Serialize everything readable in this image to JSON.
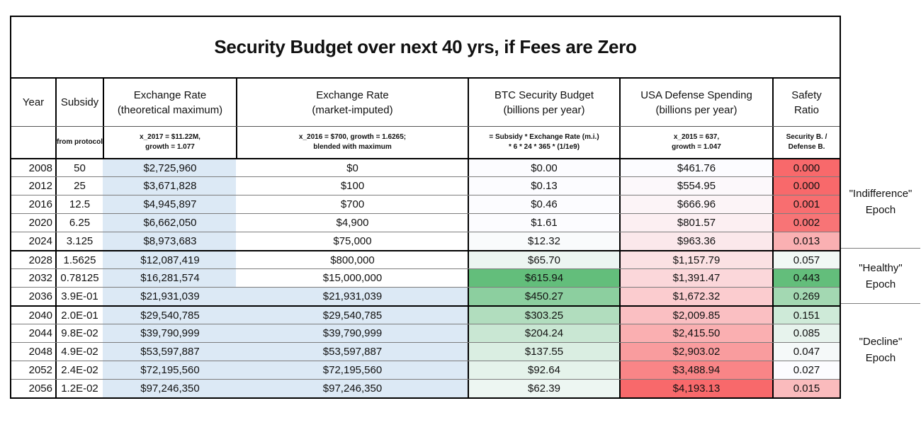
{
  "title": "Security Budget over next 40 yrs, if Fees are Zero",
  "header": {
    "year": {
      "label": "Year",
      "formula1": "",
      "formula2": ""
    },
    "subsidy": {
      "label": "Subsidy",
      "formula1": "from protocol",
      "formula2": ""
    },
    "er_max": {
      "label": "Exchange Rate",
      "sublabel": "(theoretical maximum)",
      "formula1": "x_2017 = $11.22M,",
      "formula2": "growth = 1.077"
    },
    "er_mkt": {
      "label": "Exchange Rate",
      "sublabel": "(market-imputed)",
      "formula1": "x_2016 = $700, growth = 1.6265;",
      "formula2": "blended with maximum"
    },
    "btc": {
      "label": "BTC Security Budget",
      "sublabel": "(billions per year)",
      "formula1": "= Subsidy * Exchange Rate (m.i.)",
      "formula2": "* 6 * 24 * 365 * (1/1e9)"
    },
    "usa": {
      "label": "USA Defense Spending",
      "sublabel": "(billions per year)",
      "formula1": "x_2015 = 637,",
      "formula2": "growth = 1.047"
    },
    "safety": {
      "label": "Safety",
      "sublabel": "Ratio",
      "formula1": "Security B. /",
      "formula2": "Defense B."
    }
  },
  "colors": {
    "highlight_blue": "#DCE9F5",
    "scale_red": "#F8696B",
    "scale_white": "#FCFCFF",
    "scale_green": "#63BE7B"
  },
  "rows": [
    {
      "year": "2008",
      "subsidy": "50",
      "er_max": "$2,725,960",
      "er_max_bg": "#DCE9F5",
      "er_mkt": "$0",
      "er_mkt_bg": "#FFFFFF",
      "btc": "$0.00",
      "btc_bg": "#FCFCFF",
      "usa": "$461.76",
      "usa_bg": "#FCFCFF",
      "safety": "0.000",
      "safety_bg": "#F8696B"
    },
    {
      "year": "2012",
      "subsidy": "25",
      "er_max": "$3,671,828",
      "er_max_bg": "#DCE9F5",
      "er_mkt": "$100",
      "er_mkt_bg": "#FFFFFF",
      "btc": "$0.13",
      "btc_bg": "#FCFCFF",
      "usa": "$554.95",
      "usa_bg": "#FCF8FB",
      "safety": "0.000",
      "safety_bg": "#F8696B"
    },
    {
      "year": "2016",
      "subsidy": "12.5",
      "er_max": "$4,945,897",
      "er_max_bg": "#DCE9F5",
      "er_mkt": "$700",
      "er_mkt_bg": "#FFFFFF",
      "btc": "$0.46",
      "btc_bg": "#FCFCFF",
      "usa": "$666.96",
      "usa_bg": "#FCF4F7",
      "safety": "0.001",
      "safety_bg": "#F86E70"
    },
    {
      "year": "2020",
      "subsidy": "6.25",
      "er_max": "$6,662,050",
      "er_max_bg": "#DCE9F5",
      "er_mkt": "$4,900",
      "er_mkt_bg": "#FFFFFF",
      "btc": "$1.61",
      "btc_bg": "#FCFCFF",
      "usa": "$801.57",
      "usa_bg": "#FCEFF2",
      "safety": "0.002",
      "safety_bg": "#F87476"
    },
    {
      "year": "2024",
      "subsidy": "3.125",
      "er_max": "$8,973,683",
      "er_max_bg": "#DCE9F5",
      "er_mkt": "$75,000",
      "er_mkt_bg": "#FFFFFF",
      "btc": "$12.32",
      "btc_bg": "#F9FBFC",
      "usa": "$963.36",
      "usa_bg": "#FBE8EB",
      "safety": "0.013",
      "safety_bg": "#FAB0B2"
    },
    {
      "year": "2028",
      "subsidy": "1.5625",
      "er_max": "$12,087,419",
      "er_max_bg": "#DCE9F5",
      "er_mkt": "$800,000",
      "er_mkt_bg": "#FFFFFF",
      "btc": "$65.70",
      "btc_bg": "#ECF5F1",
      "usa": "$1,157.79",
      "usa_bg": "#FBE1E3",
      "safety": "0.057",
      "safety_bg": "#F1F8F5",
      "epoch_start": true
    },
    {
      "year": "2032",
      "subsidy": "0.78125",
      "er_max": "$16,281,574",
      "er_max_bg": "#DCE9F5",
      "er_mkt": "$15,000,000",
      "er_mkt_bg": "#FFFFFF",
      "btc": "$615.94",
      "btc_bg": "#63BE7B",
      "usa": "$1,391.47",
      "usa_bg": "#FBD7DA",
      "safety": "0.443",
      "safety_bg": "#63BE7B"
    },
    {
      "year": "2036",
      "subsidy": "3.9E-01",
      "er_max": "$21,931,039",
      "er_max_bg": "#DCE9F5",
      "er_mkt": "$21,931,039",
      "er_mkt_bg": "#DCE9F5",
      "btc": "$450.27",
      "btc_bg": "#8CCF9F",
      "usa": "$1,672.32",
      "usa_bg": "#FBCCCF",
      "safety": "0.269",
      "safety_bg": "#A3D8B2"
    },
    {
      "year": "2040",
      "subsidy": "2.0E-01",
      "er_max": "$29,540,785",
      "er_max_bg": "#DCE9F5",
      "er_mkt": "$29,540,785",
      "er_mkt_bg": "#DCE9F5",
      "btc": "$303.25",
      "btc_bg": "#B1DDBE",
      "usa": "$2,009.85",
      "usa_bg": "#FABFC2",
      "safety": "0.151",
      "safety_bg": "#CEEAD8",
      "epoch_start": true
    },
    {
      "year": "2044",
      "subsidy": "9.8E-02",
      "er_max": "$39,790,999",
      "er_max_bg": "#DCE9F5",
      "er_mkt": "$39,790,999",
      "er_mkt_bg": "#DCE9F5",
      "btc": "$204.24",
      "btc_bg": "#C9E7D3",
      "usa": "$2,415.50",
      "usa_bg": "#FAAFB1",
      "safety": "0.085",
      "safety_bg": "#E7F3ED"
    },
    {
      "year": "2048",
      "subsidy": "4.9E-02",
      "er_max": "$53,597,887",
      "er_max_bg": "#DCE9F5",
      "er_mkt": "$53,597,887",
      "er_mkt_bg": "#DCE9F5",
      "btc": "$137.55",
      "btc_bg": "#DAEEE2",
      "usa": "$2,903.02",
      "usa_bg": "#F99C9E",
      "safety": "0.047",
      "safety_bg": "#F5F9F9"
    },
    {
      "year": "2052",
      "subsidy": "2.4E-02",
      "er_max": "$72,195,560",
      "er_max_bg": "#DCE9F5",
      "er_mkt": "$72,195,560",
      "er_mkt_bg": "#DCE9F5",
      "btc": "$92.64",
      "btc_bg": "#E5F3EB",
      "usa": "$3,488.94",
      "usa_bg": "#F98587",
      "safety": "0.027",
      "safety_bg": "#FCFCFF"
    },
    {
      "year": "2056",
      "subsidy": "1.2E-02",
      "er_max": "$97,246,350",
      "er_max_bg": "#DCE9F5",
      "er_mkt": "$97,246,350",
      "er_mkt_bg": "#DCE9F5",
      "btc": "$62.39",
      "btc_bg": "#EDF6F2",
      "usa": "$4,193.13",
      "usa_bg": "#F8696B",
      "safety": "0.015",
      "safety_bg": "#FABBBD"
    }
  ],
  "epochs": [
    {
      "line1": "\"Indifference\"",
      "line2": "Epoch"
    },
    {
      "line1": "\"Healthy\"",
      "line2": "Epoch"
    },
    {
      "line1": "\"Decline\"",
      "line2": "Epoch"
    }
  ],
  "chart_data": {
    "type": "table",
    "title": "Security Budget over next 40 yrs, if Fees are Zero",
    "columns": [
      "Year",
      "Subsidy (from protocol)",
      "Exchange Rate (theoretical maximum)",
      "Exchange Rate (market-imputed)",
      "BTC Security Budget (billions per year)",
      "USA Defense Spending (billions per year)",
      "Safety Ratio (Security B. / Defense B.)"
    ],
    "rows": [
      [
        2008,
        50,
        2725960,
        0,
        0.0,
        461.76,
        0.0
      ],
      [
        2012,
        25,
        3671828,
        100,
        0.13,
        554.95,
        0.0
      ],
      [
        2016,
        12.5,
        4945897,
        700,
        0.46,
        666.96,
        0.001
      ],
      [
        2020,
        6.25,
        6662050,
        4900,
        1.61,
        801.57,
        0.002
      ],
      [
        2024,
        3.125,
        8973683,
        75000,
        12.32,
        963.36,
        0.013
      ],
      [
        2028,
        1.5625,
        12087419,
        800000,
        65.7,
        1157.79,
        0.057
      ],
      [
        2032,
        0.78125,
        16281574,
        15000000,
        615.94,
        1391.47,
        0.443
      ],
      [
        2036,
        0.39,
        21931039,
        21931039,
        450.27,
        1672.32,
        0.269
      ],
      [
        2040,
        0.2,
        29540785,
        29540785,
        303.25,
        2009.85,
        0.151
      ],
      [
        2044,
        0.098,
        39790999,
        39790999,
        204.24,
        2415.5,
        0.085
      ],
      [
        2048,
        0.049,
        53597887,
        53597887,
        137.55,
        2903.02,
        0.047
      ],
      [
        2052,
        0.024,
        72195560,
        72195560,
        92.64,
        3488.94,
        0.027
      ],
      [
        2056,
        0.012,
        97246350,
        97246350,
        62.39,
        4193.13,
        0.015
      ]
    ],
    "row_groups": [
      {
        "label": "\"Indifference\" Epoch",
        "years": [
          2008,
          2024
        ]
      },
      {
        "label": "\"Healthy\" Epoch",
        "years": [
          2028,
          2036
        ]
      },
      {
        "label": "\"Decline\" Epoch",
        "years": [
          2040,
          2056
        ]
      }
    ],
    "notes": {
      "er_max_formula": "x_2017 = $11.22M, growth = 1.077",
      "er_mkt_formula": "x_2016 = $700, growth = 1.6265; blended with maximum",
      "btc_formula": "= Subsidy * Exchange Rate (m.i.) * 6 * 24 * 365 * (1/1e9)",
      "usa_formula": "x_2015 = 637, growth = 1.047"
    }
  }
}
